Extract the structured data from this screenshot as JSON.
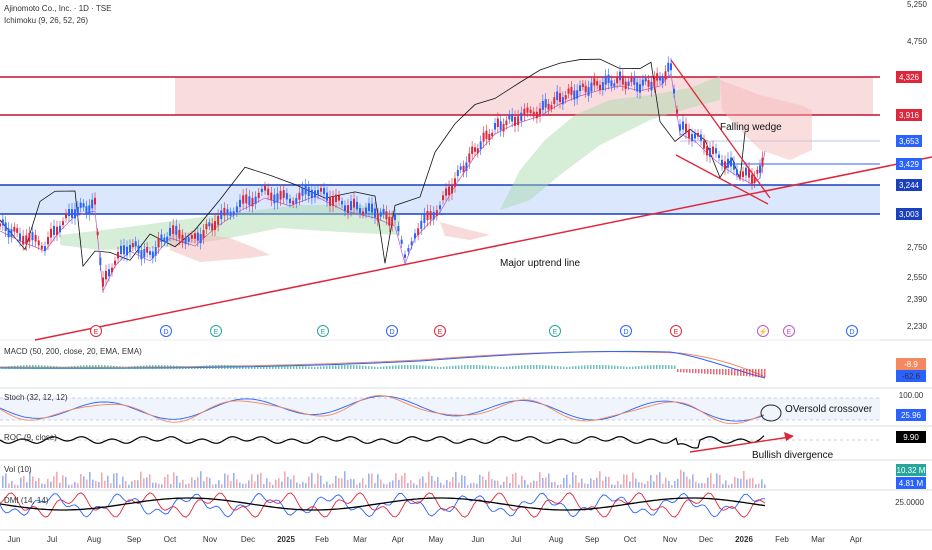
{
  "header": {
    "symbol_line": "Ajinomoto Co., Inc. · 1D · TSE",
    "indicator_line": "Ichimoku (9, 26, 52, 26)"
  },
  "annotations": {
    "falling_wedge": "Falling wedge",
    "uptrend": "Major uptrend line",
    "oversold": "OVersold crossover",
    "divergence": "Bullish divergence"
  },
  "indicators": {
    "macd": "MACD (50, 200, close, 20, EMA, EMA)",
    "stoch": "Stoch (32, 12, 12)",
    "roc": "ROC (9, close)",
    "vol": "Vol (10)",
    "dmi": "DMI (14, 14)"
  },
  "chart_data": {
    "type": "candlestick",
    "y_ticks": [
      "5,250",
      "4,750",
      "4,326",
      "3,916",
      "3,653",
      "3,429",
      "3,244",
      "3,003",
      "2,750",
      "2,550",
      "2,390",
      "2,230"
    ],
    "x_ticks": [
      "Jun",
      "Jul",
      "Aug",
      "Sep",
      "Oct",
      "Nov",
      "Dec",
      "2025",
      "Feb",
      "Mar",
      "Apr",
      "May",
      "Jun",
      "Jul",
      "Aug",
      "Sep",
      "Oct",
      "Nov",
      "Dec",
      "2026",
      "Feb",
      "Mar",
      "Apr"
    ],
    "price_badges": [
      {
        "value": "4,326",
        "color": "#e0263a"
      },
      {
        "value": "3,916",
        "color": "#e0263a"
      },
      {
        "value": "3,653",
        "color": "#2962ff"
      },
      {
        "value": "3,429",
        "color": "#2962ff"
      },
      {
        "value": "3,244",
        "color": "#1a3fbf"
      },
      {
        "value": "3,003",
        "color": "#1a3fbf"
      }
    ],
    "resistance_zone": [
      3916,
      4326
    ],
    "support_zone": [
      3003,
      3244
    ],
    "last_price": 3653,
    "events": [
      {
        "label": "E",
        "color": "#e0263a"
      },
      {
        "label": "D",
        "color": "#2962ff"
      },
      {
        "label": "E",
        "color": "#26a69a"
      },
      {
        "label": "E",
        "color": "#26a69a"
      },
      {
        "label": "D",
        "color": "#2962ff"
      },
      {
        "label": "E",
        "color": "#e0263a"
      },
      {
        "label": "E",
        "color": "#26a69a"
      },
      {
        "label": "D",
        "color": "#2962ff"
      },
      {
        "label": "E",
        "color": "#e0263a"
      },
      {
        "label": "⚡",
        "color": "#c158c1"
      },
      {
        "label": "E",
        "color": "#c158c1"
      },
      {
        "label": "D",
        "color": "#2962ff"
      }
    ],
    "macd_values": [
      {
        "value": "-8.9",
        "color": "#f5885e"
      },
      {
        "value": "-62.6",
        "color": "#2962ff"
      }
    ],
    "stoch_values": [
      {
        "value": "100.00",
        "color": "#ffffff"
      },
      {
        "value": "25.96",
        "color": "#2962ff"
      }
    ],
    "roc_value": {
      "value": "9.90",
      "color": "#000000"
    },
    "vol_values": [
      {
        "value": "10.32 M",
        "color": "#26a69a"
      },
      {
        "value": "4.81 M",
        "color": "#2962ff"
      }
    ],
    "dmi_value": "25.0000"
  }
}
